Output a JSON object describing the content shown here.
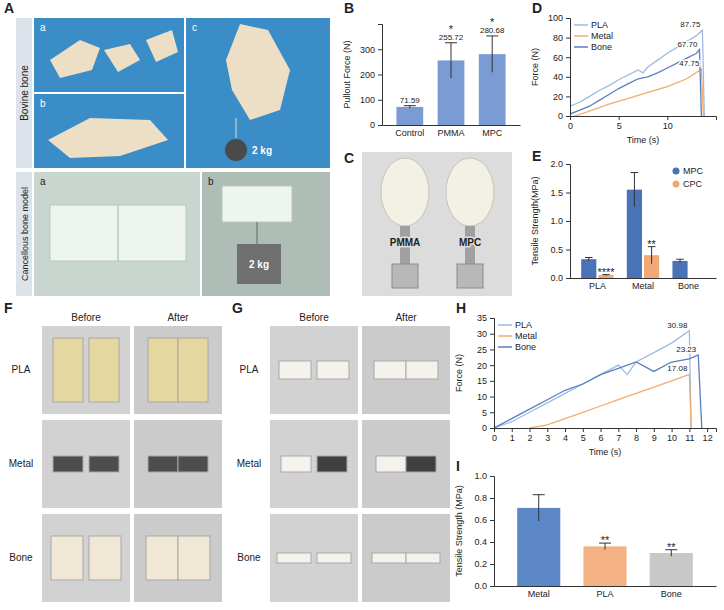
{
  "chart_data": [
    {
      "panel": "B",
      "type": "bar",
      "ylabel": "Pullout Force (N)",
      "categories": [
        "Control",
        "PMMA",
        "MPC"
      ],
      "values": [
        71.59,
        255.72,
        280.68
      ],
      "errors": [
        5,
        70,
        72
      ],
      "color": "#7a9bd3",
      "ylim": [
        0,
        400
      ],
      "yticks": [
        0,
        100,
        200,
        300
      ],
      "data_labels": true,
      "annotations": [
        {
          "text": "*",
          "category": "PMMA"
        },
        {
          "text": "*",
          "category": "MPC"
        }
      ]
    },
    {
      "panel": "D",
      "type": "line",
      "xlabel": "Time (s)",
      "ylabel": "Force (N)",
      "xlim": [
        0,
        15
      ],
      "xticks": [
        0,
        5,
        10
      ],
      "ylim": [
        0,
        100
      ],
      "yticks": [
        0,
        20,
        40,
        60,
        80,
        100
      ],
      "legend": "top-left",
      "series": [
        {
          "name": "PLA",
          "color": "#9dbbe3",
          "x": [
            0,
            1,
            2,
            3,
            4,
            5,
            6,
            7,
            7.5,
            8,
            9,
            10,
            11,
            12,
            13,
            13.6,
            13.8
          ],
          "values": [
            10,
            14,
            20,
            26,
            31,
            37,
            42,
            47,
            44,
            50,
            57,
            64,
            70,
            76,
            82,
            87.75,
            0
          ]
        },
        {
          "name": "Metal",
          "color": "#f2ac6b",
          "x": [
            0.5,
            2,
            4,
            6,
            8,
            10,
            12,
            13.5,
            13.7
          ],
          "values": [
            0,
            5,
            12,
            18,
            24,
            30,
            38,
            47.75,
            0
          ]
        },
        {
          "name": "Bone",
          "color": "#5a7fc0",
          "x": [
            0,
            1,
            2,
            3,
            4,
            5,
            6,
            7,
            8,
            9,
            10,
            11,
            12,
            13,
            13.3,
            13.5
          ],
          "values": [
            2,
            6,
            10,
            16,
            22,
            28,
            33,
            38,
            40,
            44,
            49,
            54,
            59,
            64,
            67.7,
            0
          ]
        }
      ],
      "annotations": [
        {
          "text": "87.75",
          "x": 13.6,
          "y": 87.75
        },
        {
          "text": "67.70",
          "x": 13.3,
          "y": 67.7
        },
        {
          "text": "47.75",
          "x": 13.5,
          "y": 47.75
        }
      ]
    },
    {
      "panel": "E",
      "type": "bar",
      "ylabel": "Tensile Strength(MPa)",
      "categories": [
        "PLA",
        "Metal",
        "Bone"
      ],
      "ylim": [
        0,
        2
      ],
      "yticks": [
        {
          "value": 0,
          "label": "0.0"
        },
        0.5,
        {
          "value": 1,
          "label": "1.0"
        },
        1.5,
        {
          "value": 2,
          "label": "2.0"
        }
      ],
      "legend": "top-right",
      "series": [
        {
          "name": "MPC",
          "color": "#4a72b8",
          "values": [
            0.33,
            1.55,
            0.3
          ],
          "errors": [
            0.03,
            0.3,
            0.03
          ]
        },
        {
          "name": "CPC",
          "color": "#f0a877",
          "values": [
            0.05,
            0.4,
            null
          ],
          "errors": [
            0.01,
            0.15,
            null
          ]
        }
      ],
      "annotations": [
        {
          "text": "****",
          "category": "PLA",
          "series": "CPC"
        },
        {
          "text": "**",
          "category": "Metal",
          "series": "CPC"
        }
      ]
    },
    {
      "panel": "H",
      "type": "line",
      "xlabel": "Time (s)",
      "ylabel": "Force (N)",
      "xlim": [
        0,
        12.5
      ],
      "xticks": [
        0,
        1,
        2,
        3,
        4,
        5,
        6,
        7,
        8,
        9,
        10,
        11,
        12
      ],
      "ylim": [
        0,
        35
      ],
      "yticks": [
        0,
        5,
        10,
        15,
        20,
        25,
        30,
        35
      ],
      "legend": "top-left",
      "series": [
        {
          "name": "PLA",
          "color": "#9dbbe3",
          "x": [
            0,
            1,
            2,
            3,
            4,
            5,
            6,
            7,
            7.5,
            8,
            9,
            10,
            10.5,
            11,
            11.1
          ],
          "values": [
            0,
            2,
            5,
            8,
            11,
            14,
            17,
            20,
            17,
            21,
            24,
            27,
            29,
            30.98,
            0
          ]
        },
        {
          "name": "Metal",
          "color": "#f2ac6b",
          "x": [
            2,
            3,
            4,
            5,
            6,
            7,
            8,
            9,
            10,
            11,
            11.1
          ],
          "values": [
            0,
            1,
            3,
            5,
            7,
            9,
            11,
            13,
            15,
            17.08,
            0
          ]
        },
        {
          "name": "Bone",
          "color": "#5a7fc0",
          "x": [
            0,
            1,
            2,
            3,
            4,
            5,
            6,
            7,
            8,
            9,
            10,
            11,
            11.5,
            11.7
          ],
          "values": [
            0,
            3,
            6,
            9,
            12,
            14,
            17,
            19,
            21,
            18,
            21,
            22,
            23.23,
            0
          ]
        }
      ],
      "annotations": [
        {
          "text": "30.98",
          "x": 11,
          "y": 30.98
        },
        {
          "text": "23.23",
          "x": 11.5,
          "y": 23.23
        },
        {
          "text": "17.08",
          "x": 11,
          "y": 17.08
        }
      ]
    },
    {
      "panel": "I",
      "type": "bar",
      "ylabel": "Tensile Strength (MPa)",
      "categories": [
        "Metal",
        "PLA",
        "Bone"
      ],
      "values": [
        0.71,
        0.36,
        0.3
      ],
      "errors": [
        0.12,
        0.03,
        0.03
      ],
      "colors": [
        "#5b86c8",
        "#f4b183",
        "#c8c8c8"
      ],
      "ylim": [
        0,
        1
      ],
      "yticks": [
        {
          "value": 0,
          "label": "0.0"
        },
        0.2,
        0.4,
        0.6,
        0.8,
        {
          "value": 1,
          "label": "1.0"
        }
      ],
      "annotations": [
        {
          "text": "**",
          "category": "PLA"
        },
        {
          "text": "**",
          "category": "Bone"
        }
      ]
    }
  ],
  "photos": [
    {
      "panel": "A",
      "groups": [
        {
          "title": "Bovine bone",
          "items": [
            "a",
            "b",
            "c"
          ],
          "weight": "2 kg"
        },
        {
          "title": "Cancellous bone model",
          "items": [
            "a",
            "b"
          ],
          "weight": "2 kg"
        }
      ]
    },
    {
      "panel": "C",
      "labels": [
        "PMMA",
        "MPC"
      ]
    },
    {
      "panel": "F",
      "columns": [
        "Before",
        "After"
      ],
      "rows": [
        "PLA",
        "Metal",
        "Bone"
      ]
    },
    {
      "panel": "G",
      "columns": [
        "Before",
        "After"
      ],
      "rows": [
        "PLA",
        "Metal",
        "Bone"
      ]
    }
  ]
}
